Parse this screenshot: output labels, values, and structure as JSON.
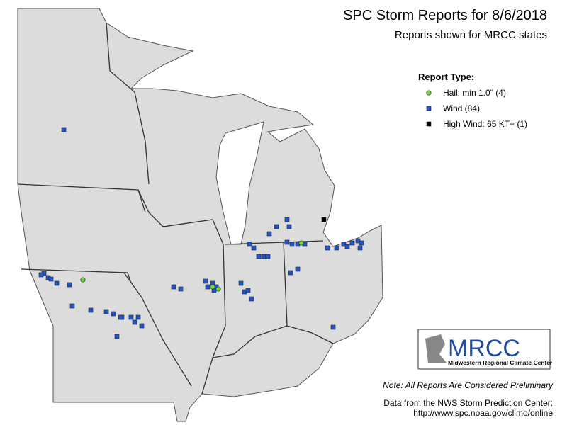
{
  "header": {
    "title": "SPC Storm Reports for 8/6/2018",
    "subtitle": "Reports shown for MRCC states"
  },
  "legend": {
    "title": "Report Type:",
    "items": [
      {
        "label": "Hail: min 1.0\" (4)",
        "color": "#66dd33"
      },
      {
        "label": "Wind (84)",
        "color": "#2255cc"
      },
      {
        "label": "High Wind: 65 KT+ (1)",
        "color": "#000000"
      }
    ]
  },
  "logo": {
    "name": "MRCC",
    "caption": "Midwestern Regional Climate Center"
  },
  "footer": {
    "note": "Note: All Reports Are Considered Preliminary",
    "source": "Data from the NWS Storm Prediction Center:",
    "url": "http://www.spc.noaa.gov/climo/online"
  }
}
